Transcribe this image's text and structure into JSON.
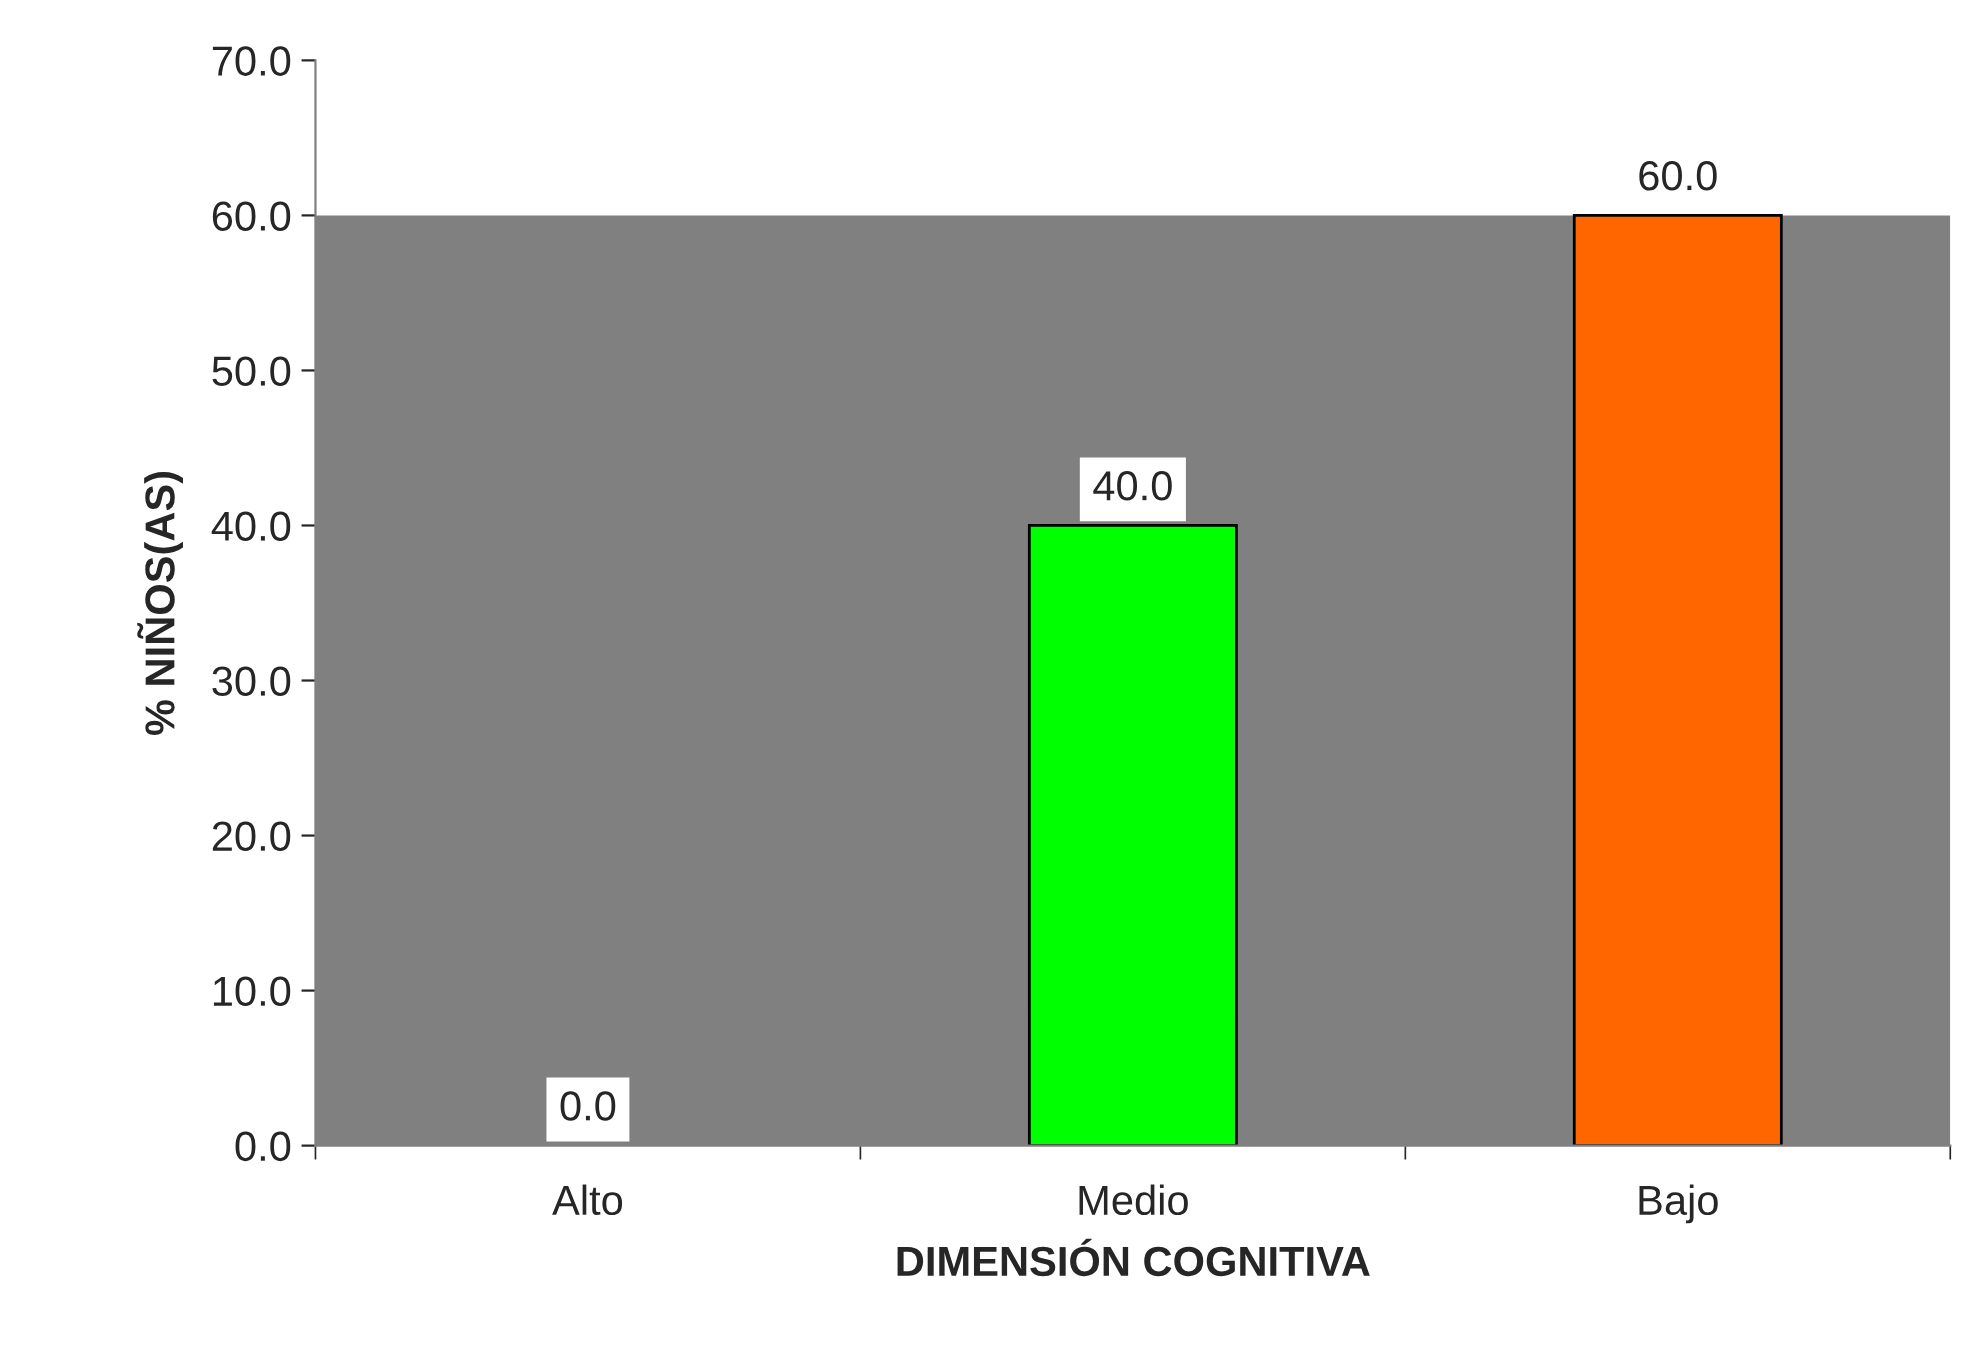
{
  "chart_data": {
    "type": "bar",
    "xlabel": "DIMENSIÓN COGNITIVA",
    "ylabel": "% NIÑOS(AS)",
    "categories": [
      "Alto",
      "Medio",
      "Bajo"
    ],
    "values": [
      0,
      40,
      60
    ],
    "colors": [
      null,
      "#00ff00",
      "#ff6600"
    ],
    "value_labels": [
      "0.0",
      "40.0",
      "60.0"
    ],
    "ylim": [
      0,
      70
    ],
    "yticks": [
      {
        "value": 0,
        "label": "0.0"
      },
      {
        "value": 10,
        "label": "10.0"
      },
      {
        "value": 20,
        "label": "20.0"
      },
      {
        "value": 30,
        "label": "30.0"
      },
      {
        "value": 40,
        "label": "40.0"
      },
      {
        "value": 50,
        "label": "50.0"
      },
      {
        "value": 60,
        "label": "60.0"
      },
      {
        "value": 70,
        "label": "70.0"
      }
    ],
    "bands": [
      {
        "axis": "y",
        "from": 0,
        "to": 60,
        "color": "#808080"
      }
    ],
    "grid": false,
    "legend": false
  }
}
